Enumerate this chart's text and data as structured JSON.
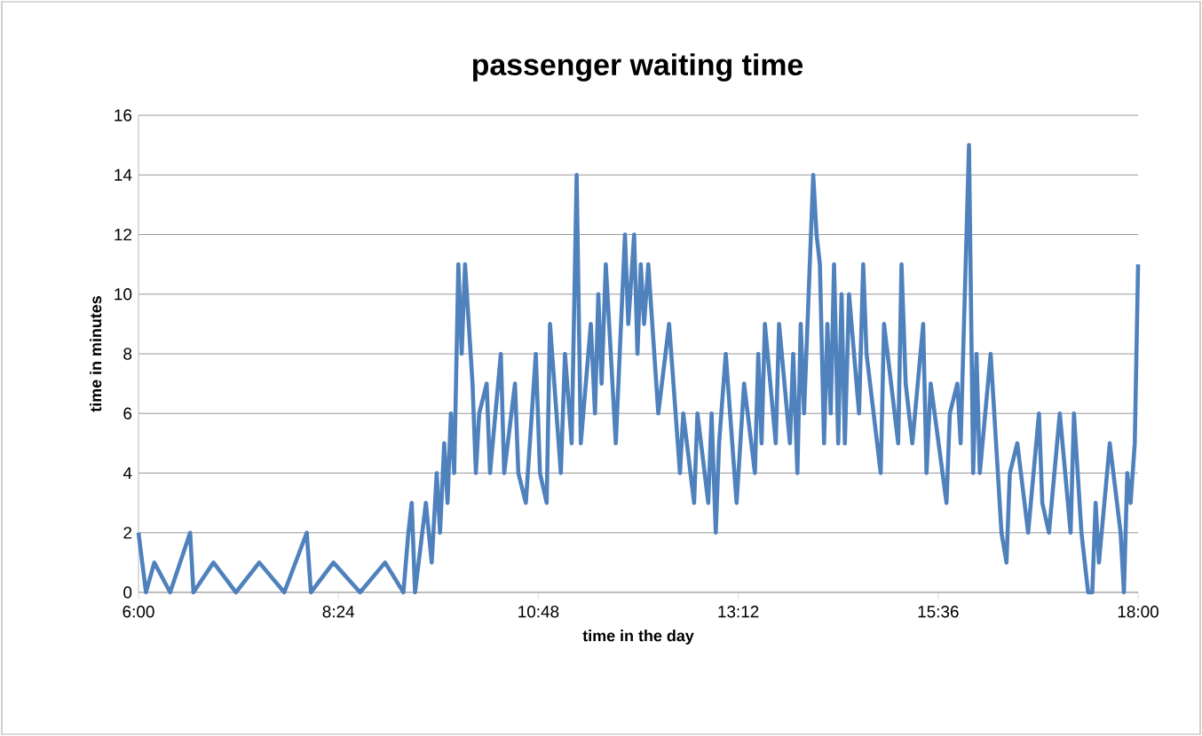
{
  "chart_data": {
    "type": "line",
    "title": "passenger waiting time",
    "xlabel": "time in the day",
    "ylabel": "time in minutes",
    "xlim": [
      6,
      18
    ],
    "ylim": [
      0,
      16
    ],
    "xticks": [
      {
        "value": 6,
        "label": "6:00"
      },
      {
        "value": 8.4,
        "label": "8:24"
      },
      {
        "value": 10.8,
        "label": "10:48"
      },
      {
        "value": 13.2,
        "label": "13:12"
      },
      {
        "value": 15.6,
        "label": "15:36"
      },
      {
        "value": 18,
        "label": "18:00"
      }
    ],
    "yticks": [
      0,
      2,
      4,
      6,
      8,
      10,
      12,
      14,
      16
    ],
    "grid": "y",
    "series": [
      {
        "color": "#4f81bd",
        "x": [
          6.0,
          6.09,
          6.19,
          6.38,
          6.62,
          6.66,
          6.9,
          7.17,
          7.45,
          7.75,
          8.02,
          8.07,
          8.34,
          8.66,
          8.96,
          9.18,
          9.24,
          9.28,
          9.32,
          9.45,
          9.52,
          9.58,
          9.62,
          9.67,
          9.71,
          9.75,
          9.79,
          9.84,
          9.88,
          9.92,
          10.01,
          10.05,
          10.09,
          10.18,
          10.22,
          10.35,
          10.39,
          10.52,
          10.56,
          10.65,
          10.77,
          10.82,
          10.9,
          10.94,
          11.07,
          11.12,
          11.2,
          11.26,
          11.31,
          11.43,
          11.48,
          11.52,
          11.56,
          11.61,
          11.73,
          11.84,
          11.88,
          11.95,
          11.99,
          12.03,
          12.07,
          12.12,
          12.24,
          12.37,
          12.5,
          12.54,
          12.67,
          12.71,
          12.84,
          12.88,
          12.93,
          12.97,
          13.05,
          13.18,
          13.27,
          13.4,
          13.44,
          13.48,
          13.52,
          13.65,
          13.69,
          13.82,
          13.86,
          13.91,
          13.95,
          13.99,
          14.1,
          14.14,
          14.18,
          14.23,
          14.27,
          14.31,
          14.35,
          14.4,
          14.44,
          14.48,
          14.53,
          14.65,
          14.7,
          14.74,
          14.91,
          14.95,
          15.12,
          15.16,
          15.21,
          15.29,
          15.42,
          15.46,
          15.51,
          15.7,
          15.74,
          15.83,
          15.87,
          15.97,
          16.02,
          16.06,
          16.1,
          16.23,
          16.36,
          16.42,
          16.46,
          16.55,
          16.68,
          16.81,
          16.85,
          16.93,
          17.06,
          17.19,
          17.23,
          17.32,
          17.4,
          17.45,
          17.49,
          17.53,
          17.66,
          17.79,
          17.83,
          17.87,
          17.91,
          17.96,
          18.0
        ],
        "values": [
          2,
          0,
          1,
          0,
          2,
          0,
          1,
          0,
          1,
          0,
          2,
          0,
          1,
          0,
          1,
          0,
          2,
          3,
          0,
          3,
          1,
          4,
          2,
          5,
          3,
          6,
          4,
          11,
          8,
          11,
          7,
          4,
          6,
          7,
          4,
          8,
          4,
          7,
          4,
          3,
          8,
          4,
          3,
          9,
          4,
          8,
          5,
          14,
          5,
          9,
          6,
          10,
          7,
          11,
          5,
          12,
          9,
          12,
          8,
          11,
          9,
          11,
          6,
          9,
          4,
          6,
          3,
          6,
          3,
          6,
          2,
          5,
          8,
          3,
          7,
          4,
          8,
          5,
          9,
          5,
          9,
          5,
          8,
          4,
          9,
          6,
          14,
          12,
          11,
          5,
          9,
          6,
          11,
          5,
          10,
          5,
          10,
          6,
          11,
          8,
          4,
          9,
          5,
          11,
          7,
          5,
          9,
          4,
          7,
          3,
          6,
          7,
          5,
          15,
          4,
          8,
          4,
          8,
          2,
          1,
          4,
          5,
          2,
          6,
          3,
          2,
          6,
          2,
          6,
          2,
          0,
          0,
          3,
          1,
          5,
          2,
          0,
          4,
          3,
          5,
          11
        ]
      }
    ]
  }
}
